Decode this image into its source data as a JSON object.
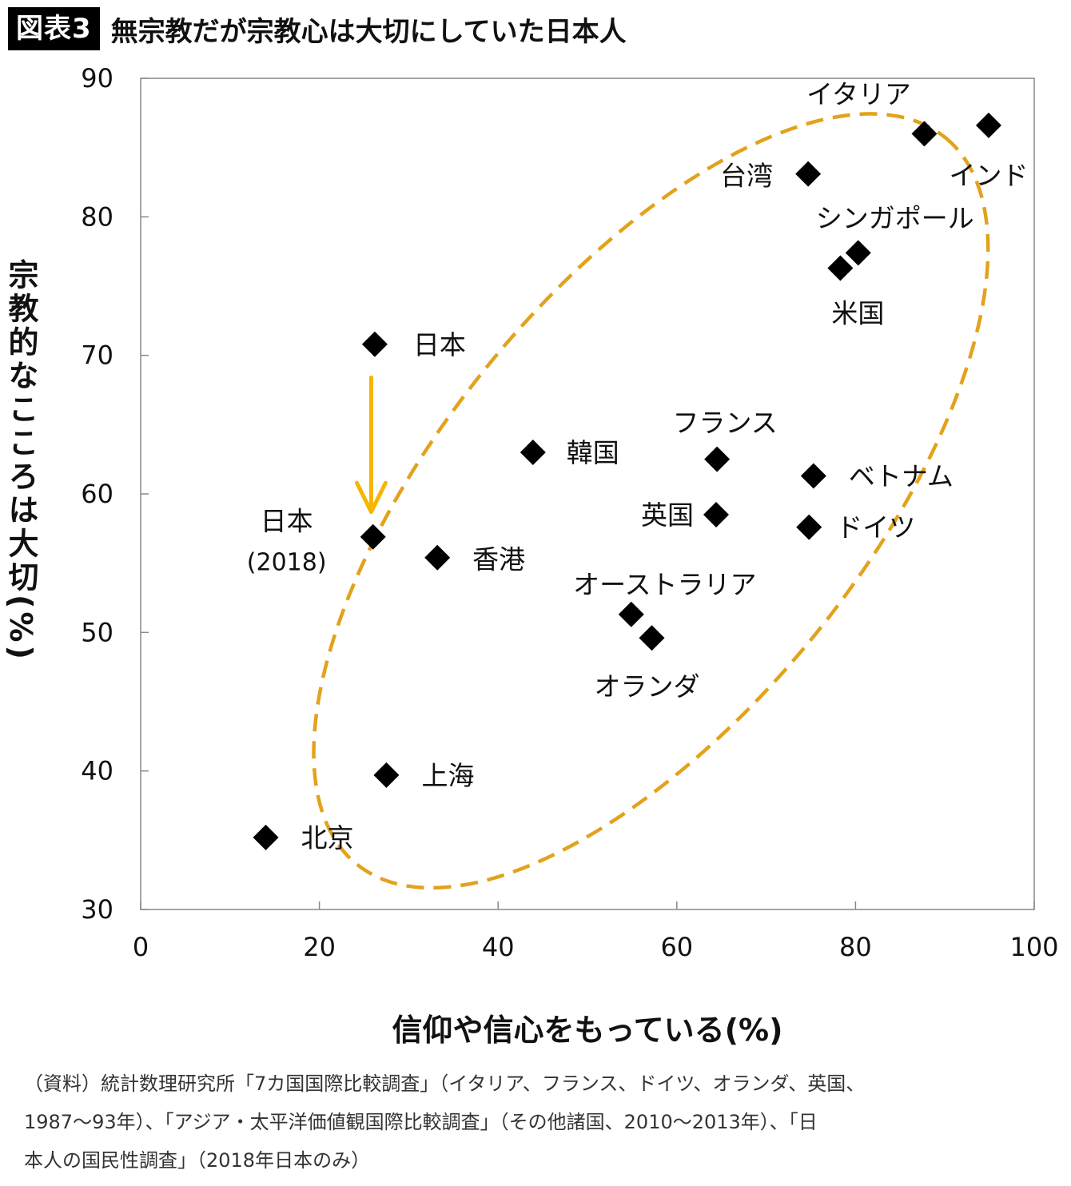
{
  "header": {
    "badge": "図表3",
    "title": "無宗教だが宗教心は大切にしていた日本人"
  },
  "chart_data": {
    "type": "scatter",
    "title": "無宗教だが宗教心は大切にしていた日本人",
    "xlabel": "信仰や信心をもっている(%)",
    "ylabel": "宗教的なこころは大切(%)",
    "xlim": [
      0,
      100
    ],
    "ylim": [
      30,
      90
    ],
    "xticks": [
      0,
      20,
      40,
      60,
      80,
      100
    ],
    "yticks": [
      30,
      40,
      50,
      60,
      70,
      80,
      90
    ],
    "grid": false,
    "points": [
      {
        "label": "イタリア",
        "x": 87.7,
        "y": 86.0
      },
      {
        "label": "インド",
        "x": 94.9,
        "y": 86.6
      },
      {
        "label": "台湾",
        "x": 74.7,
        "y": 83.1
      },
      {
        "label": "シンガポール",
        "x": 80.3,
        "y": 77.4
      },
      {
        "label": "米国",
        "x": 78.3,
        "y": 76.3
      },
      {
        "label": "日本",
        "x": 26.2,
        "y": 70.8
      },
      {
        "label": "フランス",
        "x": 64.5,
        "y": 62.5
      },
      {
        "label": "韓国",
        "x": 43.9,
        "y": 63.0
      },
      {
        "label": "ベトナム",
        "x": 75.3,
        "y": 61.3
      },
      {
        "label": "英国",
        "x": 64.4,
        "y": 58.5
      },
      {
        "label": "ドイツ",
        "x": 74.8,
        "y": 57.6
      },
      {
        "label": "日本",
        "sublabel": "(2018)",
        "x": 26.0,
        "y": 56.9
      },
      {
        "label": "香港",
        "x": 33.2,
        "y": 55.4
      },
      {
        "label": "オーストラリア",
        "x": 54.9,
        "y": 51.3
      },
      {
        "label": "オランダ",
        "x": 57.2,
        "y": 49.6
      },
      {
        "label": "上海",
        "x": 27.5,
        "y": 39.7
      },
      {
        "label": "北京",
        "x": 14.0,
        "y": 35.2
      }
    ]
  },
  "source": {
    "lines": [
      "（資料）統計数理研究所「7カ国国際比較調査」（イタリア、フランス、ドイツ、オランダ、英国、",
      "1987～93年）、「アジア・太平洋価値観国際比較調査」（その他諸国、2010～2013年）、「日",
      "本人の国民性調査」（2018年日本のみ）"
    ]
  },
  "colors": {
    "ellipse": "#E3A21C",
    "arrow": "#F7B500",
    "marker": "#000000",
    "axis": "#888888"
  }
}
